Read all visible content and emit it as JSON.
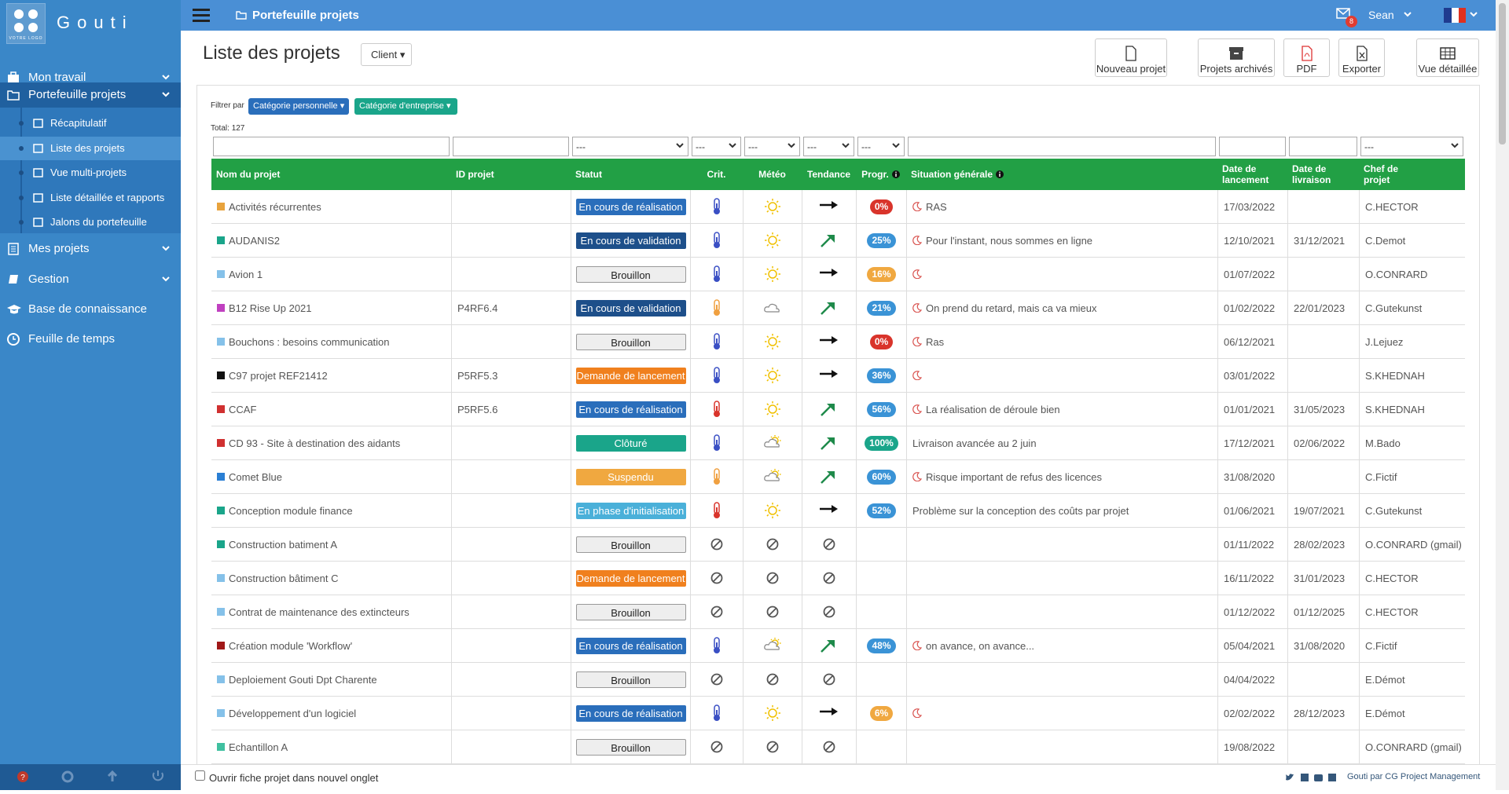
{
  "sidebar": {
    "logo_text": "Gouti",
    "logo_sub": "VOTRE LOGO",
    "menu": [
      {
        "label": "Mon travail"
      },
      {
        "label": "Portefeuille projets",
        "children": [
          "Récapitulatif",
          "Liste des projets",
          "Vue multi-projets",
          "Liste détaillée et rapports",
          "Jalons du portefeuille"
        ]
      },
      {
        "label": "Mes projets"
      },
      {
        "label": "Gestion"
      },
      {
        "label": "Base de connaissance"
      },
      {
        "label": "Feuille de temps"
      }
    ]
  },
  "topbar": {
    "breadcrumb": "Portefeuille projets",
    "notifications": 8,
    "user": "Sean"
  },
  "page": {
    "title": "Liste des projets",
    "client_button": "Client",
    "actions": [
      "Nouveau projet",
      "Projets archivés",
      "PDF",
      "Exporter",
      "Vue détaillée"
    ],
    "filter_label": "Filtrer par",
    "filters": [
      "Catégorie personnelle",
      "Catégorie d'entreprise"
    ],
    "total_label": "Total:",
    "total": 127
  },
  "table": {
    "filter_placeholder": "---",
    "columns": [
      "Nom du projet",
      "ID projet",
      "Statut",
      "Crit.",
      "Météo",
      "Tendance",
      "Progr.",
      "Situation générale",
      "Date de lancement",
      "Date de livraison",
      "Chef de projet"
    ],
    "rows": [
      {
        "color": "#e8a33d",
        "name": "Activités récurrentes",
        "id": null,
        "status": "En cours de réalisation",
        "status_color": "#2a6ebb",
        "crit": "#3a4fc4",
        "meteo": "sun",
        "trend": "flat",
        "progress": "0%",
        "progress_color": "#d9342b",
        "situation_icon": true,
        "situation": "RAS",
        "launch": "17/03/2022",
        "delivery": null,
        "manager": "C.HECTOR"
      },
      {
        "color": "#1aa58a",
        "name": "AUDANIS2",
        "id": null,
        "status": "En cours de validation",
        "status_color": "#1d4f8a",
        "crit": "#3a4fc4",
        "meteo": "sun",
        "trend": "up",
        "progress": "25%",
        "progress_color": "#3a93d6",
        "situation_icon": true,
        "situation": "Pour l'instant, nous sommes en ligne",
        "launch": "12/10/2021",
        "delivery": "31/12/2021",
        "manager": "C.Demot"
      },
      {
        "color": "#85c1e9",
        "name": "Avion 1",
        "id": null,
        "status": "Brouillon",
        "status_color": "#eeeeee",
        "crit": "#3a4fc4",
        "meteo": "sun",
        "trend": "flat",
        "progress": "16%",
        "progress_color": "#f0a840",
        "situation_icon": true,
        "situation": null,
        "launch": "01/07/2022",
        "delivery": null,
        "manager": "O.CONRARD"
      },
      {
        "color": "#c040c0",
        "name": "B12 Rise Up 2021",
        "id": "P4RF6.4",
        "status": "En cours de validation",
        "status_color": "#1d4f8a",
        "crit": "#f0a040",
        "meteo": "cloud",
        "trend": "up",
        "progress": "21%",
        "progress_color": "#3a93d6",
        "situation_icon": true,
        "situation": "On prend du retard, mais ca va mieux",
        "launch": "01/02/2022",
        "delivery": "22/01/2023",
        "manager": "C.Gutekunst"
      },
      {
        "color": "#85c1e9",
        "name": "Bouchons : besoins communication",
        "id": null,
        "status": "Brouillon",
        "status_color": "#eeeeee",
        "crit": "#3a4fc4",
        "meteo": "sun",
        "trend": "flat",
        "progress": "0%",
        "progress_color": "#d9342b",
        "situation_icon": true,
        "situation": "Ras",
        "launch": "06/12/2021",
        "delivery": null,
        "manager": "J.Lejuez"
      },
      {
        "color": "#111111",
        "name": "C97 projet REF21412",
        "id": "P5RF5.3",
        "status": "Demande de lancement",
        "status_color": "#f0801e",
        "crit": "#3a4fc4",
        "meteo": "sun",
        "trend": "flat",
        "progress": "36%",
        "progress_color": "#3a93d6",
        "situation_icon": true,
        "situation": null,
        "launch": "03/01/2022",
        "delivery": null,
        "manager": "S.KHEDNAH"
      },
      {
        "color": "#d03030",
        "name": "CCAF",
        "id": "P5RF5.6",
        "status": "En cours de réalisation",
        "status_color": "#2a6ebb",
        "crit": "#d9342b",
        "meteo": "sun",
        "trend": "up",
        "progress": "56%",
        "progress_color": "#3a93d6",
        "situation_icon": true,
        "situation": "La réalisation de déroule bien",
        "launch": "01/01/2021",
        "delivery": "31/05/2023",
        "manager": "S.KHEDNAH"
      },
      {
        "color": "#d03030",
        "name": "CD 93 - Site à destination des aidants",
        "id": null,
        "status": "Clôturé",
        "status_color": "#1aa58a",
        "crit": "#3a4fc4",
        "meteo": "partly",
        "trend": "up",
        "progress": "100%",
        "progress_color": "#1aa58a",
        "situation_icon": false,
        "situation": "Livraison avancée au 2 juin",
        "launch": "17/12/2021",
        "delivery": "02/06/2022",
        "manager": "M.Bado"
      },
      {
        "color": "#2a7fd4",
        "name": "Comet Blue",
        "id": null,
        "status": "Suspendu",
        "status_color": "#f0a840",
        "crit": "#f0a040",
        "meteo": "partly",
        "trend": "up",
        "progress": "60%",
        "progress_color": "#3a93d6",
        "situation_icon": true,
        "situation": "Risque important de refus des licences",
        "launch": "31/08/2020",
        "delivery": null,
        "manager": "C.Fictif"
      },
      {
        "color": "#1aa58a",
        "name": "Conception module finance",
        "id": null,
        "status": "En phase d'initialisation",
        "status_color": "#4ab0d9",
        "crit": "#d9342b",
        "meteo": "sun",
        "trend": "flat",
        "progress": "52%",
        "progress_color": "#3a93d6",
        "situation_icon": false,
        "situation": "Problème sur la conception des coûts par projet",
        "launch": "01/06/2021",
        "delivery": "19/07/2021",
        "manager": "C.Gutekunst"
      },
      {
        "color": "#1aa58a",
        "name": "Construction batiment A",
        "id": null,
        "status": "Brouillon",
        "status_color": "#eeeeee",
        "crit": null,
        "meteo": null,
        "trend": null,
        "progress": null,
        "progress_color": null,
        "situation_icon": false,
        "situation": null,
        "launch": "01/11/2022",
        "delivery": "28/02/2023",
        "manager": "O.CONRARD (gmail)"
      },
      {
        "color": "#85c1e9",
        "name": "Construction bâtiment C",
        "id": null,
        "status": "Demande de lancement",
        "status_color": "#f0801e",
        "crit": null,
        "meteo": null,
        "trend": null,
        "progress": null,
        "progress_color": null,
        "situation_icon": false,
        "situation": null,
        "launch": "16/11/2022",
        "delivery": "31/01/2023",
        "manager": "C.HECTOR"
      },
      {
        "color": "#85c1e9",
        "name": "Contrat de maintenance des extincteurs",
        "id": null,
        "status": "Brouillon",
        "status_color": "#eeeeee",
        "crit": null,
        "meteo": null,
        "trend": null,
        "progress": null,
        "progress_color": null,
        "situation_icon": false,
        "situation": null,
        "launch": "01/12/2022",
        "delivery": "01/12/2025",
        "manager": "C.HECTOR"
      },
      {
        "color": "#a01818",
        "name": "Création module 'Workflow'",
        "id": null,
        "status": "En cours de réalisation",
        "status_color": "#2a6ebb",
        "crit": "#3a4fc4",
        "meteo": "partly",
        "trend": "up",
        "progress": "48%",
        "progress_color": "#3a93d6",
        "situation_icon": true,
        "situation": "on avance, on avance...",
        "launch": "05/04/2021",
        "delivery": "31/08/2020",
        "manager": "C.Fictif"
      },
      {
        "color": "#85c1e9",
        "name": "Deploiement Gouti Dpt Charente",
        "id": null,
        "status": "Brouillon",
        "status_color": "#eeeeee",
        "crit": null,
        "meteo": null,
        "trend": null,
        "progress": null,
        "progress_color": null,
        "situation_icon": false,
        "situation": null,
        "launch": "04/04/2022",
        "delivery": null,
        "manager": "E.Démot"
      },
      {
        "color": "#85c1e9",
        "name": "Développement d'un logiciel",
        "id": null,
        "status": "En cours de réalisation",
        "status_color": "#2a6ebb",
        "crit": "#3a4fc4",
        "meteo": "sun",
        "trend": "flat",
        "progress": "6%",
        "progress_color": "#f0a840",
        "situation_icon": true,
        "situation": null,
        "launch": "02/02/2022",
        "delivery": "28/12/2023",
        "manager": "E.Démot"
      },
      {
        "color": "#40c0a0",
        "name": "Echantillon A",
        "id": null,
        "status": "Brouillon",
        "status_color": "#eeeeee",
        "crit": null,
        "meteo": null,
        "trend": null,
        "progress": null,
        "progress_color": null,
        "situation_icon": false,
        "situation": null,
        "launch": "19/08/2022",
        "delivery": null,
        "manager": "O.CONRARD (gmail)"
      }
    ]
  },
  "footer": {
    "checkbox_label": "Ouvrir fiche projet dans nouvel onglet",
    "credit": "Gouti par CG Project Management"
  }
}
